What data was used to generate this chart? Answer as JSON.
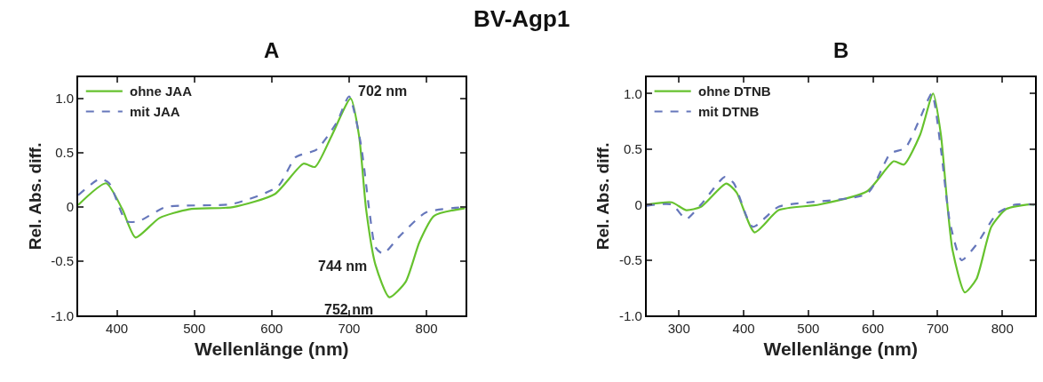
{
  "chart_data": [
    {
      "type": "line",
      "title": "A",
      "xlabel": "Wellenlänge (nm)",
      "ylabel": "Rel. Abs. diff.",
      "xlim": [
        350,
        850
      ],
      "xticks": [
        400,
        500,
        600,
        700,
        800
      ],
      "ylim": [
        -1.0,
        1.2
      ],
      "yticks": [
        {
          "value": -1.0,
          "label": "-1.0"
        },
        {
          "value": -0.5,
          "label": "-0.5"
        },
        0,
        0.5,
        {
          "value": 1.0,
          "label": "1.0"
        }
      ],
      "legend": "top left",
      "marker": "none",
      "annotations": [
        "BV-Agp1",
        {
          "text": "702 nm",
          "x": 702,
          "y": 1.0
        },
        {
          "text": "744 nm",
          "x": 744,
          "y": -0.43
        },
        {
          "text": "752 nm",
          "x": 752,
          "y": -0.83
        }
      ],
      "series": [
        {
          "name": "ohne JAA",
          "color": "#66c22e",
          "line_style": "solid",
          "x": [
            350,
            386,
            407,
            424,
            455,
            493,
            550,
            604,
            641,
            656,
            677,
            702,
            713,
            722,
            734,
            752,
            773,
            791,
            810,
            850
          ],
          "values": [
            0.02,
            0.22,
            -0.02,
            -0.28,
            -0.1,
            -0.02,
            0.0,
            0.12,
            0.4,
            0.37,
            0.65,
            1.0,
            0.65,
            -0.02,
            -0.53,
            -0.83,
            -0.69,
            -0.32,
            -0.08,
            -0.01
          ]
        },
        {
          "name": "mit JAA",
          "color": "#6677bb",
          "line_style": "dashed",
          "x": [
            350,
            378,
            390,
            412,
            428,
            463,
            550,
            608,
            631,
            658,
            684,
            700,
            715,
            727,
            734,
            744,
            765,
            799,
            850
          ],
          "values": [
            0.11,
            0.26,
            0.22,
            -0.13,
            -0.13,
            0.0,
            0.03,
            0.19,
            0.46,
            0.53,
            0.78,
            1.02,
            0.59,
            -0.08,
            -0.37,
            -0.43,
            -0.27,
            -0.05,
            0.0
          ]
        }
      ]
    },
    {
      "type": "line",
      "title": "B",
      "xlabel": "Wellenlänge (nm)",
      "ylabel": "Rel. Abs. diff.",
      "xlim": [
        250,
        850
      ],
      "xticks": [
        300,
        400,
        500,
        600,
        700,
        800
      ],
      "ylim": [
        -1.0,
        1.15
      ],
      "yticks": [
        {
          "value": -1.0,
          "label": "-1.0"
        },
        {
          "value": -0.5,
          "label": "-0.5"
        },
        0,
        0.5,
        {
          "value": 1.0,
          "label": "1.0"
        }
      ],
      "legend": "top left",
      "marker": "none",
      "series": [
        {
          "name": "ohne DTNB",
          "color": "#66c22e",
          "line_style": "solid",
          "x": [
            250,
            289,
            311,
            334,
            373,
            389,
            417,
            454,
            517,
            591,
            632,
            648,
            673,
            693,
            705,
            715,
            723,
            742,
            760,
            783,
            806,
            838,
            850
          ],
          "values": [
            0.0,
            0.02,
            -0.05,
            -0.02,
            0.19,
            0.11,
            -0.25,
            -0.05,
            0.0,
            0.12,
            0.39,
            0.36,
            0.63,
            1.0,
            0.63,
            0.0,
            -0.41,
            -0.79,
            -0.67,
            -0.2,
            -0.04,
            0.0,
            0.0
          ]
        },
        {
          "name": "mit DTNB",
          "color": "#6677bb",
          "line_style": "dashed",
          "x": [
            250,
            289,
            311,
            334,
            371,
            385,
            414,
            454,
            591,
            627,
            650,
            673,
            691,
            705,
            719,
            737,
            760,
            792,
            820,
            850
          ],
          "values": [
            -0.01,
            0.0,
            -0.13,
            0.0,
            0.25,
            0.19,
            -0.2,
            -0.02,
            0.1,
            0.46,
            0.51,
            0.78,
            1.0,
            0.5,
            -0.16,
            -0.5,
            -0.36,
            -0.08,
            0.0,
            0.0
          ]
        }
      ]
    }
  ]
}
